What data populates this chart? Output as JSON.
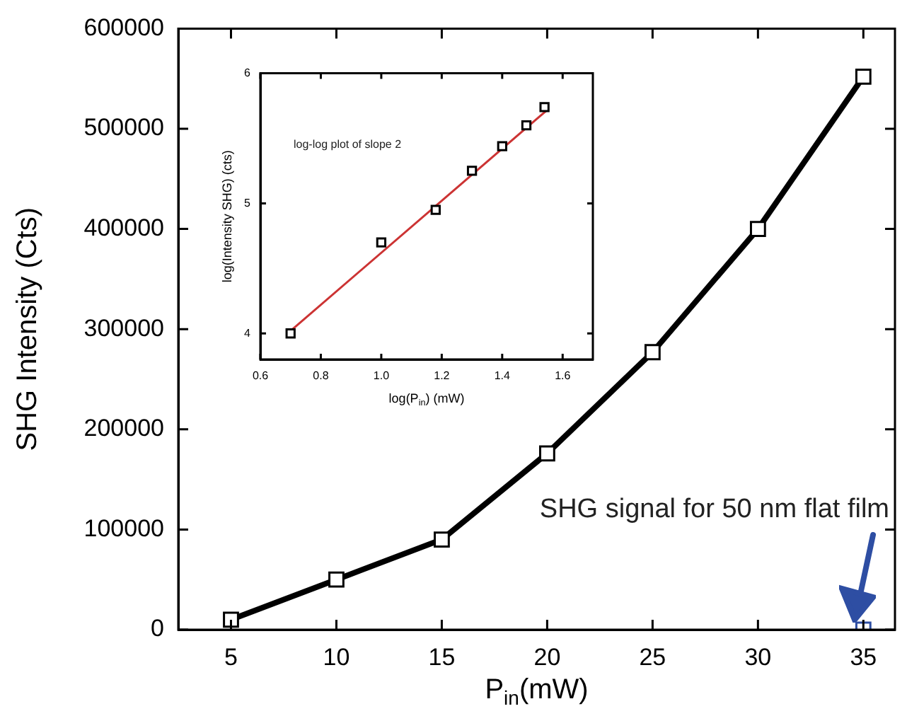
{
  "chart_data": [
    {
      "type": "line",
      "xlabel": "P$_{in}$(mW)",
      "ylabel": "SHG Intensity (Cts)",
      "x": [
        5,
        10,
        15,
        20,
        25,
        30,
        35
      ],
      "series": [
        {
          "color": "#000000",
          "values": [
            10000,
            50000,
            90000,
            176000,
            277000,
            400000,
            552000
          ]
        },
        {
          "type": "scatter",
          "color": "#2e4ea3",
          "x": [
            35
          ],
          "values": [
            0
          ]
        }
      ],
      "xlim": [
        2.5,
        36.5
      ],
      "ylim": [
        0,
        600000
      ],
      "xticks": [
        5,
        10,
        15,
        20,
        25,
        30,
        35
      ],
      "yticks": [
        0,
        100000,
        200000,
        300000,
        400000,
        500000,
        600000
      ],
      "annotations": [
        "SHG signal for 50 nm flat film"
      ],
      "marker": "square",
      "grid": false,
      "legend": false
    },
    {
      "type": "scatter",
      "xlabel": "log(P$_{in}$) (mW)",
      "ylabel": "log(Intensity SHG) (cts)",
      "series": [
        {
          "color": "#000000",
          "x": [
            0.7,
            1.0,
            1.18,
            1.3,
            1.4,
            1.48,
            1.54
          ],
          "values": [
            4.0,
            4.7,
            4.95,
            5.25,
            5.44,
            5.6,
            5.74
          ]
        },
        {
          "type": "line",
          "color": "#cc3333",
          "marker": "none",
          "x": [
            0.7,
            1.55
          ],
          "values": [
            4.02,
            5.72
          ]
        }
      ],
      "xlim": [
        0.6,
        1.7
      ],
      "ylim": [
        3.8,
        6
      ],
      "xticks": [
        {
          "value": 0.6,
          "label": "0.6"
        },
        {
          "value": 0.8,
          "label": "0.8"
        },
        {
          "value": 1.0,
          "label": "1.0"
        },
        {
          "value": 1.2,
          "label": "1.2"
        },
        {
          "value": 1.4,
          "label": "1.4"
        },
        {
          "value": 1.6,
          "label": "1.6"
        }
      ],
      "yticks": [
        4,
        5,
        6
      ],
      "annotations": [
        "log-log plot of slope 2"
      ],
      "marker": "square",
      "grid": false,
      "legend": false
    }
  ]
}
